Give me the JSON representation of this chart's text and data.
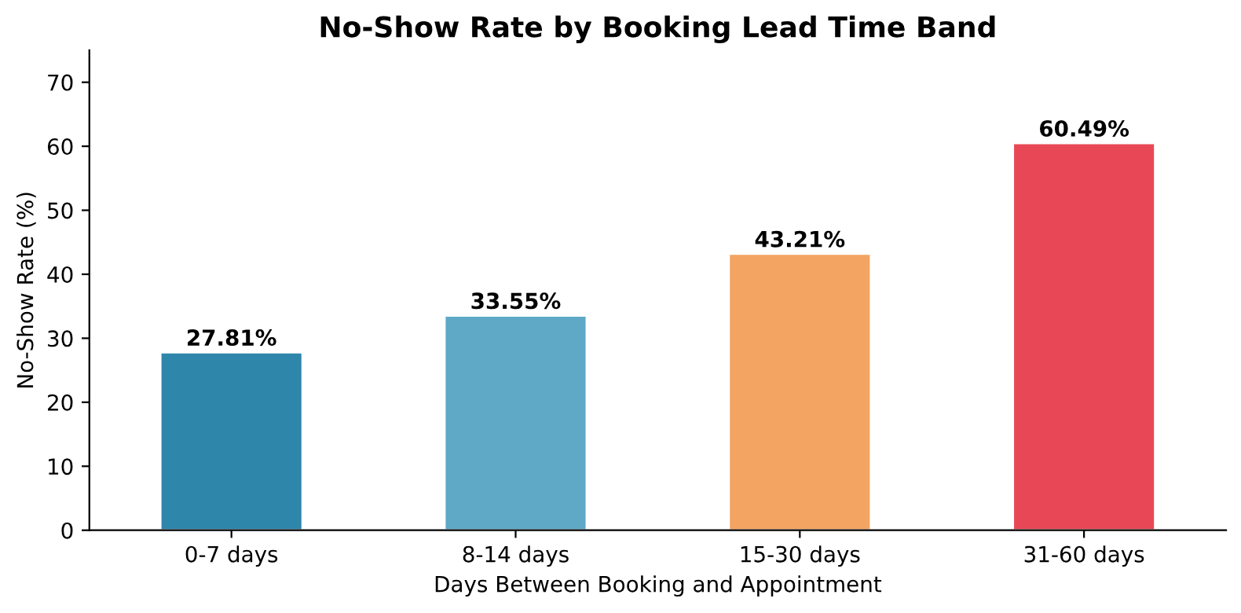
{
  "chart_data": {
    "type": "bar",
    "title": "No-Show Rate by Booking Lead Time Band",
    "xlabel": "Days Between Booking and Appointment",
    "ylabel": "No-Show Rate (%)",
    "categories": [
      "0-7 days",
      "8-14 days",
      "15-30 days",
      "31-60 days"
    ],
    "values": [
      27.81,
      33.55,
      43.21,
      60.49
    ],
    "colors": [
      "#2e86ab",
      "#5fa8c6",
      "#f3a462",
      "#e84855"
    ],
    "value_labels": [
      "27.81%",
      "33.55%",
      "43.21%",
      "60.49%"
    ],
    "ylim": [
      0,
      75
    ],
    "yticks": [
      0,
      10,
      20,
      30,
      40,
      50,
      60,
      70
    ],
    "grid": false
  }
}
